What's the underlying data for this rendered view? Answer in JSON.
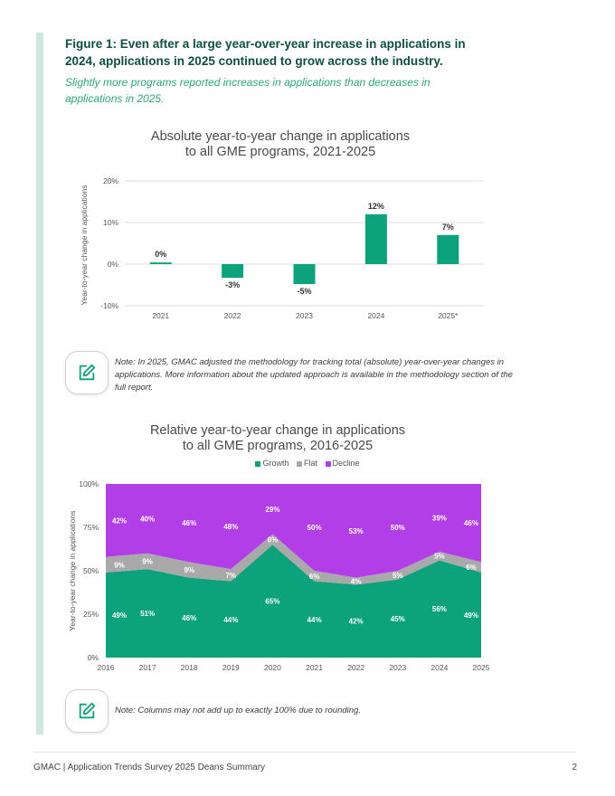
{
  "figure": {
    "title": "Figure 1: Even after a large year-over-year increase in applications in 2024, applications in 2025 continued to grow across the industry.",
    "subtitle": "Slightly more programs reported increases in applications than decreases in applications in 2025."
  },
  "chart_data": [
    {
      "type": "bar",
      "title": "Absolute year-to-year change in applications to all GME programs, 2021-2025",
      "title_lines": [
        "Absolute year-to-year change in applications",
        "to all GME programs, 2021-2025"
      ],
      "categories": [
        "2021",
        "2022",
        "2023",
        "2024",
        "2025*"
      ],
      "values": [
        0.4,
        -3.3,
        -4.8,
        12,
        7
      ],
      "data_labels": [
        "0%",
        "-3%",
        "-5%",
        "12%",
        "7%"
      ],
      "ylabel": "Year-to-year change in applications",
      "ylim": [
        -10,
        20
      ],
      "yticks": [
        20,
        10,
        0,
        -10
      ],
      "ytick_labels": [
        "20%",
        "10%",
        "0%",
        "-10%"
      ],
      "color": "#0ca27b",
      "grid": true
    },
    {
      "type": "area",
      "stacked": true,
      "title": "Relative year-to-year change in applications to all GME programs, 2016-2025",
      "title_lines": [
        "Relative year-to-year change in applications",
        "to all GME programs, 2016-2025"
      ],
      "x": [
        "2016",
        "2017",
        "2018",
        "2019",
        "2020",
        "2021",
        "2022",
        "2023",
        "2024",
        "2025"
      ],
      "series": [
        {
          "name": "Growth",
          "color": "#0ca27b",
          "values": [
            49,
            51,
            46,
            44,
            65,
            44,
            42,
            45,
            56,
            49
          ]
        },
        {
          "name": "Flat",
          "color": "#a9a9a9",
          "values": [
            9,
            9,
            9,
            7,
            6,
            6,
            4,
            5,
            5,
            6
          ]
        },
        {
          "name": "Decline",
          "color": "#b23ee8",
          "values": [
            42,
            40,
            46,
            48,
            29,
            50,
            53,
            50,
            39,
            46
          ]
        }
      ],
      "ylabel": "Year-to-year change in applications",
      "ylim": [
        0,
        100
      ],
      "yticks": [
        0,
        25,
        50,
        75,
        100
      ],
      "ytick_labels": [
        "0%",
        "25%",
        "50%",
        "75%",
        "100%"
      ],
      "legend": "top-center"
    }
  ],
  "notes": {
    "note1": "Note: In 2025, GMAC adjusted the methodology for tracking total (absolute) year-over-year changes in applications. More information about the updated approach is available in the methodology section of the full report.",
    "note2": "Note: Columns may not add up to exactly 100% due to rounding.",
    "icon": "edit-note-icon"
  },
  "footer": {
    "left": "GMAC | Application Trends Survey 2025 Deans Summary",
    "page": "2"
  }
}
